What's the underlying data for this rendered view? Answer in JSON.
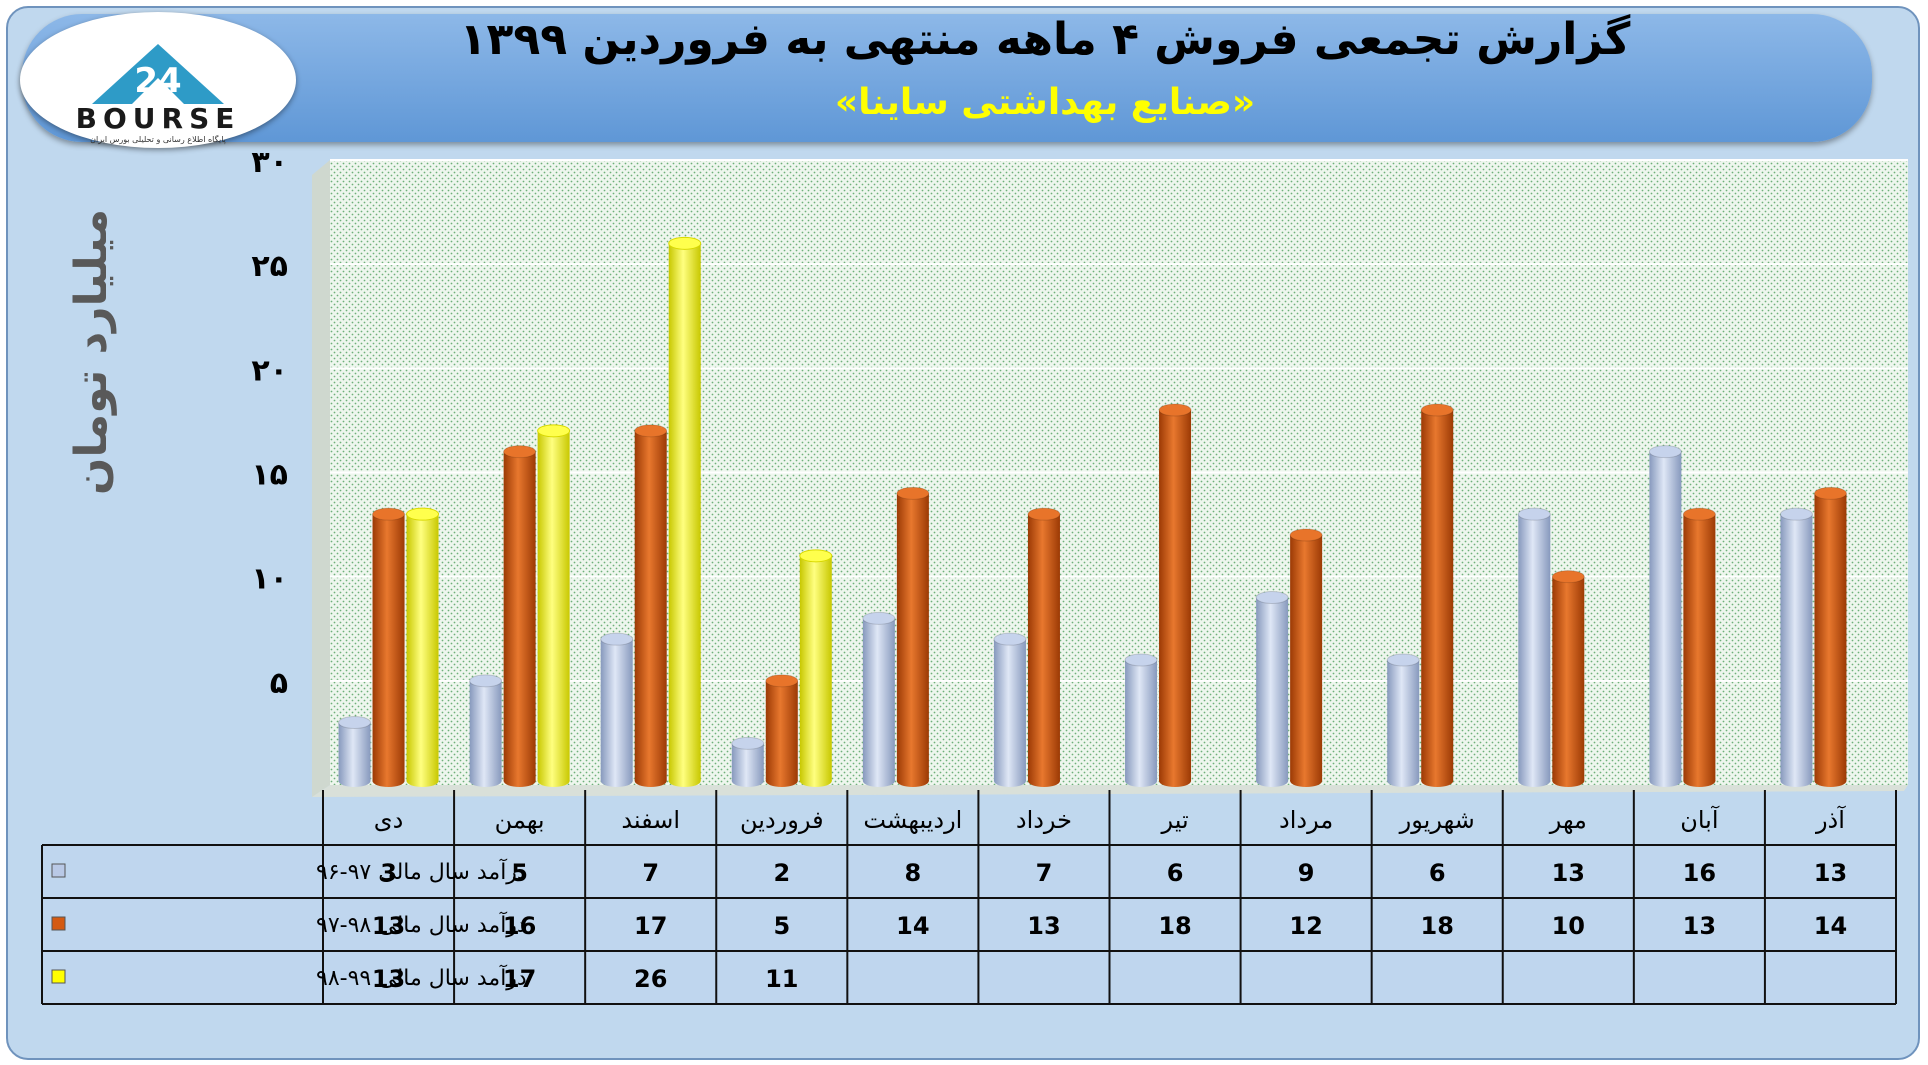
{
  "logo": {
    "brand": "BOURSE",
    "number": "24",
    "tagline": "پایگاه اطلاع رسانی و تحلیلی بورس ایران"
  },
  "header": {
    "title": "گزارش تجمعی فروش ۴ ماهه منتهی به فروردین ۱۳۹۹",
    "subtitle": "«صنایع بهداشتی ساینا»"
  },
  "colors": {
    "series1": "#b9c9e6",
    "series2": "#d45a12",
    "series3": "#ffff00",
    "plot_bg": "#eef5ee",
    "frame": "#c0d8ee",
    "header": "#5f97d6"
  },
  "chart_data": {
    "type": "bar",
    "title": "گزارش تجمعی فروش ۴ ماهه منتهی به فروردین ۱۳۹۹",
    "subtitle": "«صنایع بهداشتی ساینا»",
    "ylabel": "میلیارد تومان",
    "xlabel": "",
    "ylim": [
      0,
      30
    ],
    "yticks": [
      "۵",
      "۱۰",
      "۱۵",
      "۲۰",
      "۲۵",
      "۳۰"
    ],
    "ytick_values": [
      5,
      10,
      15,
      20,
      25,
      30
    ],
    "categories": [
      "دی",
      "بهمن",
      "اسفند",
      "فروردین",
      "اردیبهشت",
      "خرداد",
      "تیر",
      "مرداد",
      "شهریور",
      "مهر",
      "آبان",
      "آذر"
    ],
    "series": [
      {
        "name": "درآمد سال مالی ۹۷-۹۶",
        "values": [
          3,
          5,
          7,
          2,
          8,
          7,
          6,
          9,
          6,
          13,
          16,
          13
        ]
      },
      {
        "name": "درآمد سال مالی ۹۸-۹۷",
        "values": [
          13,
          16,
          17,
          5,
          14,
          13,
          18,
          12,
          18,
          10,
          13,
          14
        ]
      },
      {
        "name": "درآمد سال مالی ۹۹-۹۸",
        "values": [
          13,
          17,
          26,
          11,
          null,
          null,
          null,
          null,
          null,
          null,
          null,
          null
        ]
      }
    ],
    "grid": true,
    "legend": "data-table-left"
  }
}
